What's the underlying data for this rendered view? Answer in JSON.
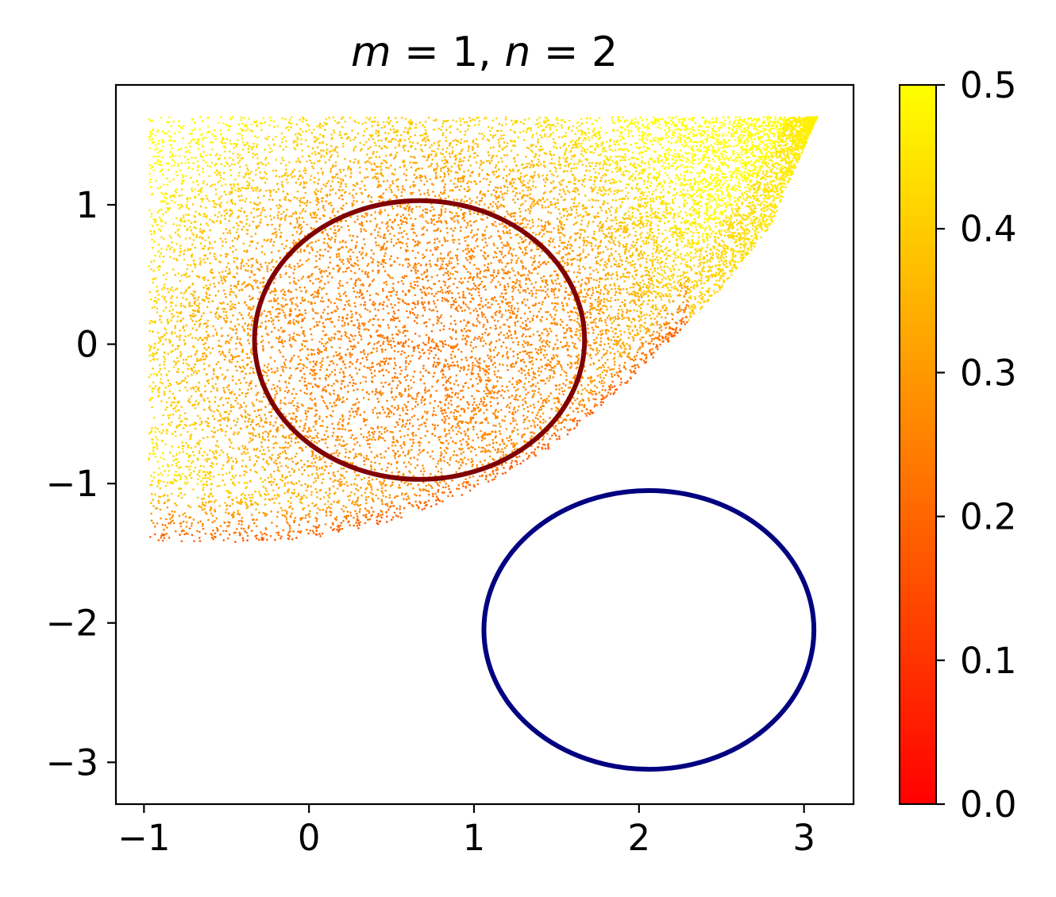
{
  "chart_data": {
    "type": "scatter",
    "title": "m = 1, n = 2",
    "title_parts": [
      "m",
      " = 1, ",
      "n",
      " = 2"
    ],
    "xlabel": "",
    "ylabel": "",
    "xlim": [
      -1.17,
      3.3
    ],
    "ylim": [
      -3.3,
      1.86
    ],
    "x_ticks": [
      -1,
      0,
      1,
      2,
      3
    ],
    "x_tick_labels": [
      "−1",
      "0",
      "1",
      "2",
      "3"
    ],
    "y_ticks": [
      -3,
      -2,
      -1,
      0,
      1
    ],
    "y_tick_labels": [
      "−3",
      "−2",
      "−1",
      "0",
      "1"
    ],
    "grid": false,
    "scatter_region": {
      "description_values": "points fill region x from -0.97 to 3.08, y from lower curve up to 1.63",
      "x_min": -0.97,
      "x_max": 3.08,
      "y_top": 1.63,
      "lower_boundary": [
        [
          -0.97,
          -1.41
        ],
        [
          -0.5,
          -1.43
        ],
        [
          0.0,
          -1.4
        ],
        [
          0.5,
          -1.27
        ],
        [
          1.0,
          -1.05
        ],
        [
          1.5,
          -0.72
        ],
        [
          2.0,
          -0.2
        ],
        [
          2.5,
          0.4
        ],
        [
          2.8,
          0.85
        ],
        [
          3.08,
          1.63
        ]
      ],
      "color_value_range": [
        0.0,
        0.5
      ],
      "colormap": "autumn"
    },
    "curves": [
      {
        "name": "",
        "shape": "ellipse",
        "center": [
          0.67,
          0.03
        ],
        "radii": [
          1.0,
          1.0
        ],
        "color": "#800000"
      },
      {
        "name": "",
        "shape": "ellipse",
        "center": [
          2.06,
          -2.05
        ],
        "radii": [
          1.0,
          1.0
        ],
        "color": "#000080"
      }
    ],
    "colorbar": {
      "range": [
        0.0,
        0.5
      ],
      "ticks": [
        0.0,
        0.1,
        0.2,
        0.3,
        0.4,
        0.5
      ],
      "tick_labels": [
        "0.0",
        "0.1",
        "0.2",
        "0.3",
        "0.4",
        "0.5"
      ],
      "colors": [
        "#ff0000",
        "#ffff00"
      ]
    }
  }
}
